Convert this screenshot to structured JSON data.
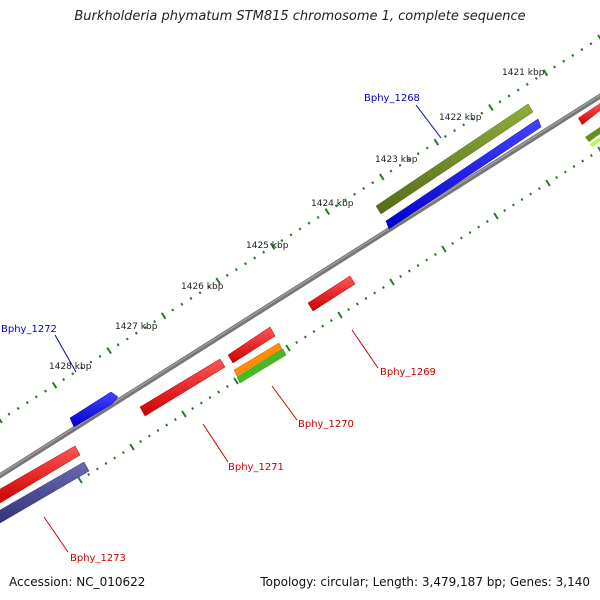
{
  "title": "Burkholderia phymatum STM815 chromosome 1, complete sequence",
  "footer": {
    "accession": "Accession: NC_010622",
    "summary": "Topology: circular; Length: 3,479,187 bp; Genes: 3,140"
  },
  "scale_labels": [
    "1421 kbp",
    "1422 kbp",
    "1423 kbp",
    "1424 kbp",
    "1425 kbp",
    "1426 kbp",
    "1427 kbp",
    "1428 kbp"
  ],
  "genes": [
    {
      "name": "Bphy_1268",
      "color": "#0000cc"
    },
    {
      "name": "Bphy_1269",
      "color": "#cc0000"
    },
    {
      "name": "Bphy_1270",
      "color": "#cc0000"
    },
    {
      "name": "Bphy_1271",
      "color": "#cc0000"
    },
    {
      "name": "Bphy_1272",
      "color": "#0000cc"
    },
    {
      "name": "Bphy_1273",
      "color": "#cc0000"
    }
  ],
  "colors": {
    "backbone": "#888888",
    "tick": "#2a7a2a",
    "olive": "#6b8e23",
    "blue": "#0000ee",
    "red": "#ee0000",
    "orange": "#ff8c00",
    "green": "#44bb22",
    "slate": "#4a4a9a",
    "lime": "#aaff44"
  }
}
